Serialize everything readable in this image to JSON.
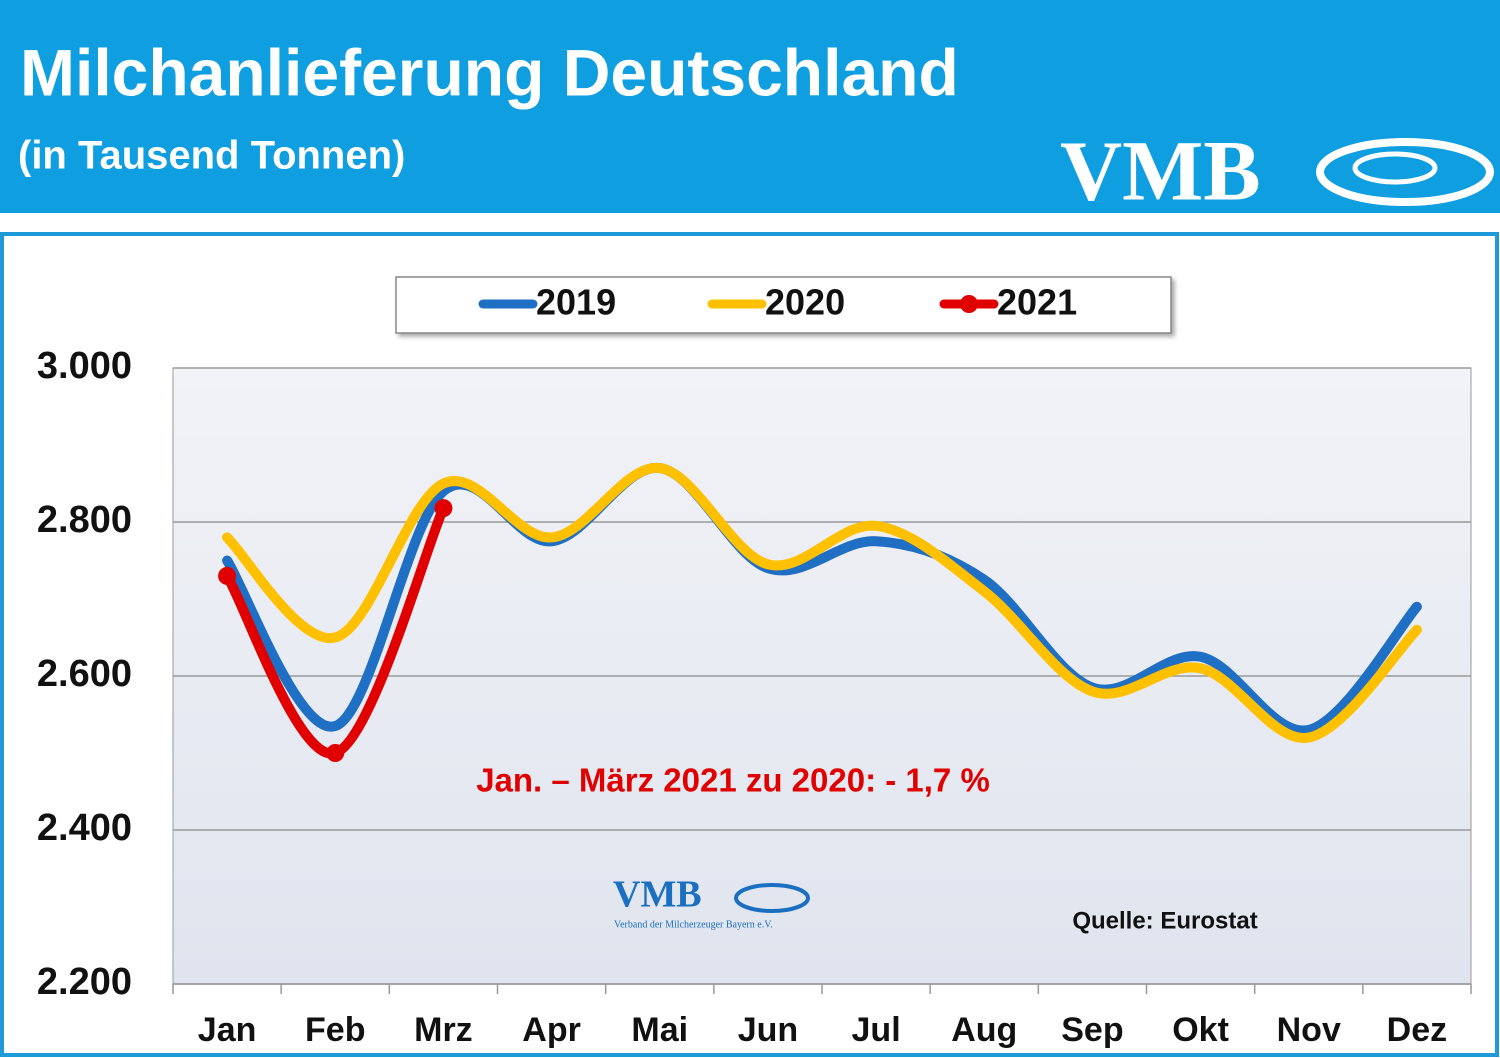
{
  "chart_data": {
    "type": "line",
    "title": "Milchanlieferung Deutschland",
    "subtitle": "(in Tausend Tonnen)",
    "logo": "VMB",
    "watermark_logo": "VMB",
    "watermark_text": "Verband der Milcherzeuger Bayern e.V.",
    "annotation": "Jan. – März 2021 zu 2020: - 1,7 %",
    "source": "Quelle: Eurostat",
    "categories": [
      "Jan",
      "Feb",
      "Mrz",
      "Apr",
      "Mai",
      "Jun",
      "Jul",
      "Aug",
      "Sep",
      "Okt",
      "Nov",
      "Dez"
    ],
    "series": [
      {
        "name": "2019",
        "color": "#1f6fc5",
        "values": [
          2750,
          2535,
          2840,
          2775,
          2870,
          2740,
          2775,
          2725,
          2585,
          2625,
          2530,
          2690
        ]
      },
      {
        "name": "2020",
        "color": "#ffc000",
        "values": [
          2780,
          2650,
          2850,
          2780,
          2870,
          2745,
          2795,
          2710,
          2580,
          2610,
          2520,
          2660
        ]
      },
      {
        "name": "2021",
        "color": "#e00000",
        "markers": true,
        "values": [
          2730,
          2500,
          2818,
          null,
          null,
          null,
          null,
          null,
          null,
          null,
          null,
          null
        ]
      }
    ],
    "ylim": [
      2200,
      3000
    ],
    "yticks": [
      {
        "value": 2200,
        "label": "2.200"
      },
      {
        "value": 2400,
        "label": "2.400"
      },
      {
        "value": 2600,
        "label": "2.600"
      },
      {
        "value": 2800,
        "label": "2.800"
      },
      {
        "value": 3000,
        "label": "3.000"
      }
    ],
    "grid": true,
    "legend": "top"
  }
}
